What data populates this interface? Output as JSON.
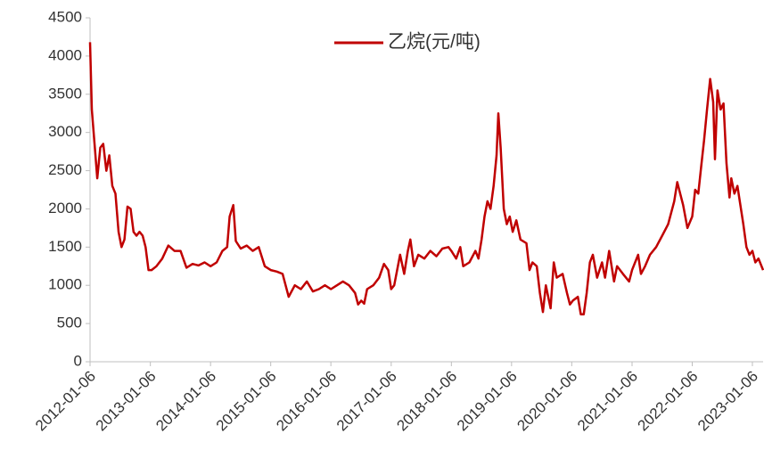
{
  "chart_data": {
    "type": "line",
    "x": [
      "2012-01-06",
      "2012-01-17",
      "2012-02-04",
      "2012-02-19",
      "2012-03-08",
      "2012-03-26",
      "2012-04-14",
      "2012-05-02",
      "2012-05-20",
      "2012-06-08",
      "2012-06-27",
      "2012-07-15",
      "2012-08-02",
      "2012-08-20",
      "2012-09-08",
      "2012-09-26",
      "2012-10-14",
      "2012-11-01",
      "2012-11-20",
      "2012-12-08",
      "2012-12-26",
      "2013-01-13",
      "2013-02-12",
      "2013-03-19",
      "2013-04-25",
      "2013-06-01",
      "2013-07-08",
      "2013-08-13",
      "2013-09-19",
      "2013-10-25",
      "2013-12-01",
      "2014-01-06",
      "2014-02-12",
      "2014-03-19",
      "2014-04-17",
      "2014-05-02",
      "2014-05-24",
      "2014-06-08",
      "2014-07-08",
      "2014-08-13",
      "2014-09-19",
      "2014-10-25",
      "2014-12-01",
      "2015-01-06",
      "2015-02-12",
      "2015-03-19",
      "2015-04-25",
      "2015-06-01",
      "2015-07-08",
      "2015-08-13",
      "2015-09-19",
      "2015-10-25",
      "2015-12-01",
      "2016-01-06",
      "2016-02-12",
      "2016-03-19",
      "2016-04-25",
      "2016-06-01",
      "2016-06-19",
      "2016-07-08",
      "2016-07-26",
      "2016-08-13",
      "2016-09-19",
      "2016-10-25",
      "2016-11-23",
      "2016-12-19",
      "2017-01-06",
      "2017-01-24",
      "2017-03-01",
      "2017-03-26",
      "2017-04-17",
      "2017-05-02",
      "2017-05-24",
      "2017-06-19",
      "2017-07-26",
      "2017-08-31",
      "2017-10-07",
      "2017-11-12",
      "2017-12-19",
      "2018-01-06",
      "2018-02-04",
      "2018-03-01",
      "2018-03-19",
      "2018-04-25",
      "2018-06-01",
      "2018-06-19",
      "2018-07-08",
      "2018-07-26",
      "2018-08-13",
      "2018-08-31",
      "2018-09-19",
      "2018-10-07",
      "2018-10-18",
      "2018-11-01",
      "2018-11-20",
      "2018-12-08",
      "2018-12-26",
      "2019-01-13",
      "2019-02-04",
      "2019-03-01",
      "2019-04-06",
      "2019-04-25",
      "2019-05-13",
      "2019-06-08",
      "2019-06-27",
      "2019-07-15",
      "2019-08-02",
      "2019-08-31",
      "2019-09-19",
      "2019-10-07",
      "2019-11-12",
      "2019-12-08",
      "2019-12-26",
      "2020-01-13",
      "2020-02-12",
      "2020-03-01",
      "2020-03-19",
      "2020-04-06",
      "2020-04-25",
      "2020-05-13",
      "2020-06-08",
      "2020-07-08",
      "2020-07-26",
      "2020-08-20",
      "2020-09-19",
      "2020-10-07",
      "2020-11-12",
      "2020-12-19",
      "2021-01-06",
      "2021-02-12",
      "2021-03-01",
      "2021-03-26",
      "2021-04-25",
      "2021-06-01",
      "2021-07-08",
      "2021-08-13",
      "2021-09-19",
      "2021-10-07",
      "2021-10-25",
      "2021-11-12",
      "2021-12-08",
      "2022-01-06",
      "2022-01-24",
      "2022-02-12",
      "2022-03-01",
      "2022-03-19",
      "2022-04-06",
      "2022-04-25",
      "2022-05-13",
      "2022-05-24",
      "2022-06-08",
      "2022-06-27",
      "2022-07-15",
      "2022-08-02",
      "2022-08-20",
      "2022-08-31",
      "2022-09-19",
      "2022-10-07",
      "2022-10-25",
      "2022-11-12",
      "2022-12-01",
      "2022-12-19",
      "2023-01-06",
      "2023-01-24",
      "2023-02-12",
      "2023-03-12"
    ],
    "series": [
      {
        "name": "乙烷(元/吨)",
        "color": "#c00000",
        "values": [
          4180,
          3300,
          2800,
          2400,
          2800,
          2850,
          2500,
          2700,
          2300,
          2200,
          1700,
          1500,
          1600,
          2030,
          2000,
          1700,
          1650,
          1700,
          1650,
          1500,
          1200,
          1200,
          1250,
          1350,
          1520,
          1450,
          1450,
          1230,
          1280,
          1260,
          1300,
          1250,
          1300,
          1450,
          1500,
          1900,
          2050,
          1580,
          1480,
          1520,
          1450,
          1500,
          1250,
          1200,
          1180,
          1150,
          850,
          1000,
          950,
          1050,
          920,
          950,
          1000,
          950,
          1000,
          1050,
          1000,
          900,
          750,
          800,
          760,
          950,
          1000,
          1100,
          1280,
          1200,
          950,
          1000,
          1400,
          1150,
          1450,
          1600,
          1250,
          1400,
          1350,
          1450,
          1380,
          1480,
          1500,
          1450,
          1350,
          1500,
          1250,
          1300,
          1450,
          1350,
          1600,
          1900,
          2100,
          2000,
          2300,
          2700,
          3250,
          2800,
          2000,
          1800,
          1900,
          1700,
          1850,
          1600,
          1550,
          1200,
          1300,
          1250,
          900,
          650,
          1000,
          700,
          1300,
          1100,
          1150,
          900,
          750,
          800,
          850,
          620,
          620,
          900,
          1300,
          1400,
          1100,
          1300,
          1100,
          1450,
          1050,
          1250,
          1150,
          1050,
          1200,
          1400,
          1150,
          1250,
          1400,
          1500,
          1650,
          1800,
          2100,
          2350,
          2200,
          2050,
          1750,
          1900,
          2250,
          2200,
          2550,
          2900,
          3300,
          3700,
          3400,
          2650,
          3550,
          3300,
          3380,
          2600,
          2150,
          2400,
          2200,
          2300,
          2050,
          1800,
          1500,
          1400,
          1450,
          1300,
          1350,
          1200
        ]
      }
    ],
    "xlim": [
      "2012-01-06",
      "2023-03-12"
    ],
    "xticks": [
      "2012-01-06",
      "2013-01-06",
      "2014-01-06",
      "2015-01-06",
      "2016-01-06",
      "2017-01-06",
      "2018-01-06",
      "2019-01-06",
      "2020-01-06",
      "2021-01-06",
      "2022-01-06",
      "2023-01-06"
    ],
    "ylim": [
      0,
      4500
    ],
    "yticks": [
      0,
      500,
      1000,
      1500,
      2000,
      2500,
      3000,
      3500,
      4000,
      4500
    ],
    "grid": false,
    "legend": "top"
  }
}
